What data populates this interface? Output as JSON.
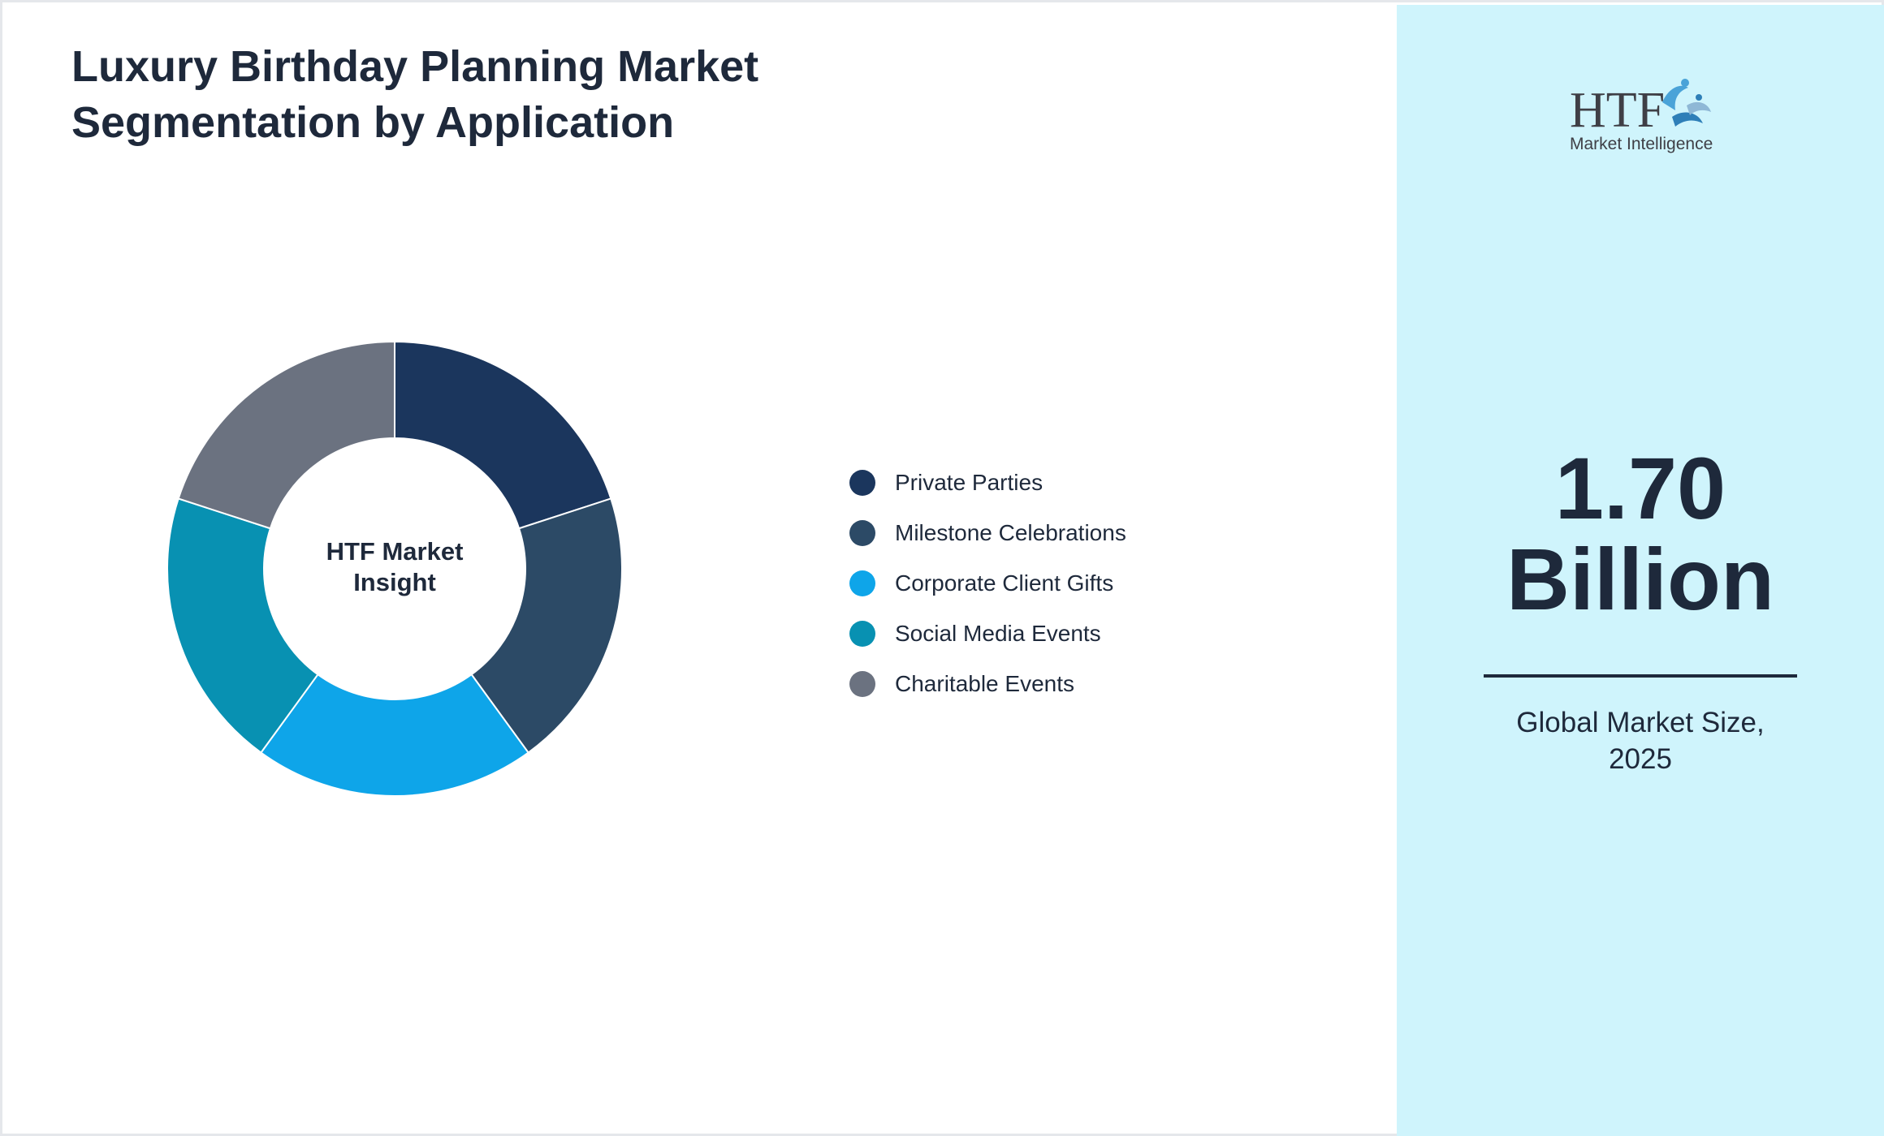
{
  "title": {
    "line1": "Luxury Birthday Planning Market",
    "line2": "Segmentation by Application"
  },
  "center_label": {
    "line1": "HTF Market",
    "line2": "Insight"
  },
  "chart_data": {
    "type": "pie",
    "variant": "donut",
    "title": "Luxury Birthday Planning Market Segmentation by Application",
    "categories": [
      "Private Parties",
      "Milestone Celebrations",
      "Corporate Client Gifts",
      "Social Media Events",
      "Charitable Events"
    ],
    "values": [
      20,
      20,
      20,
      20,
      20
    ],
    "colors": [
      "#1b365d",
      "#2c4a66",
      "#0ea5e9",
      "#0891b2",
      "#6b7280"
    ],
    "legend_position": "right"
  },
  "side_panel": {
    "logo": {
      "text_main": "HTF",
      "text_sub": "Market Intelligence"
    },
    "market_value": {
      "number": "1.70",
      "unit": "Billion"
    },
    "caption": {
      "line1": "Global Market Size,",
      "line2": "2025"
    },
    "background_color": "#cff4fc"
  }
}
